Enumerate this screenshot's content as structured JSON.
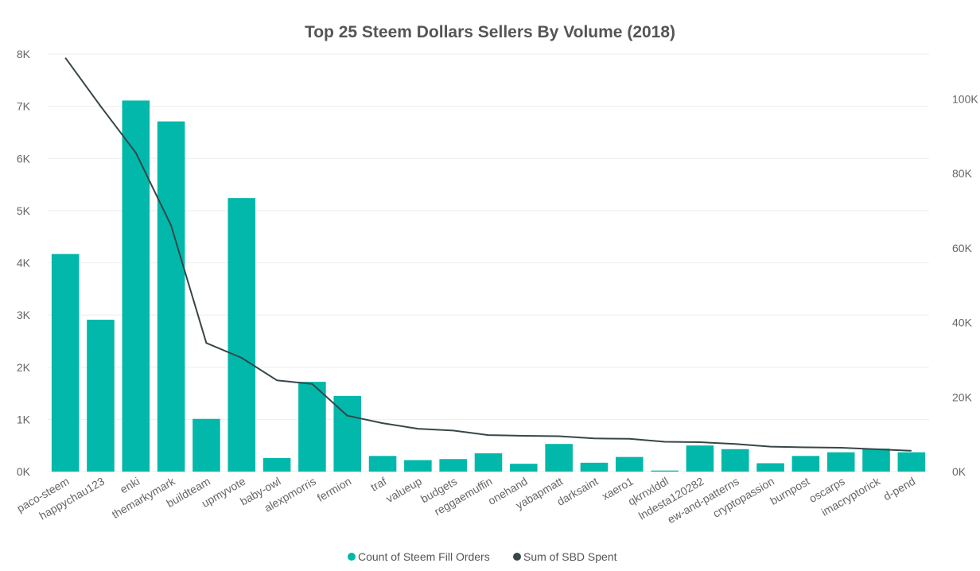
{
  "colors": {
    "bar": "#01B8AA",
    "line": "#374649",
    "title": "#555555",
    "tick": "#666666",
    "grid": "#eeeeee"
  },
  "chart_data": {
    "type": "bar",
    "title": "Top 25 Steem Dollars Sellers By Volume (2018)",
    "xlabel": "",
    "ylabel": "",
    "categories": [
      "paco-steem",
      "happychau123",
      "enki",
      "themarkymark",
      "buildteam",
      "upmyvote",
      "baby-owl",
      "alexpmorris",
      "fermion",
      "traf",
      "valueup",
      "budgets",
      "reggaemuffin",
      "onehand",
      "yabapmatt",
      "darksaint",
      "xaero1",
      "qkrnxlddl",
      "lndesta120282",
      "ew-and-patterns",
      "cryptopassion",
      "burnpost",
      "oscarps",
      "imacryptorick",
      "d-pend"
    ],
    "series": [
      {
        "name": "Count of Steem Fill Orders",
        "type": "bar",
        "axis": "left",
        "values": [
          4170,
          2910,
          7110,
          6710,
          1010,
          5240,
          260,
          1720,
          1450,
          300,
          220,
          240,
          350,
          150,
          530,
          170,
          280,
          20,
          500,
          430,
          160,
          300,
          370,
          440,
          370
        ]
      },
      {
        "name": "Sum of SBD Spent",
        "type": "line",
        "axis": "right",
        "values": [
          111000,
          98000,
          85500,
          66000,
          34500,
          30500,
          24500,
          23500,
          15000,
          13000,
          11500,
          11000,
          9800,
          9600,
          9500,
          8900,
          8800,
          8000,
          7900,
          7400,
          6700,
          6500,
          6400,
          6000,
          5600
        ]
      }
    ],
    "left_axis": {
      "ylim": [
        0,
        8000
      ],
      "ticks": [
        "0K",
        "1K",
        "2K",
        "3K",
        "4K",
        "5K",
        "6K",
        "7K",
        "8K"
      ],
      "tick_values": [
        0,
        1000,
        2000,
        3000,
        4000,
        5000,
        6000,
        7000,
        8000
      ]
    },
    "right_axis": {
      "ylim": [
        0,
        112000
      ],
      "ticks": [
        "0K",
        "20K",
        "40K",
        "60K",
        "80K",
        "100K"
      ],
      "tick_values": [
        0,
        20000,
        40000,
        60000,
        80000,
        100000
      ]
    },
    "grid": true,
    "legend_position": "bottom-center"
  }
}
